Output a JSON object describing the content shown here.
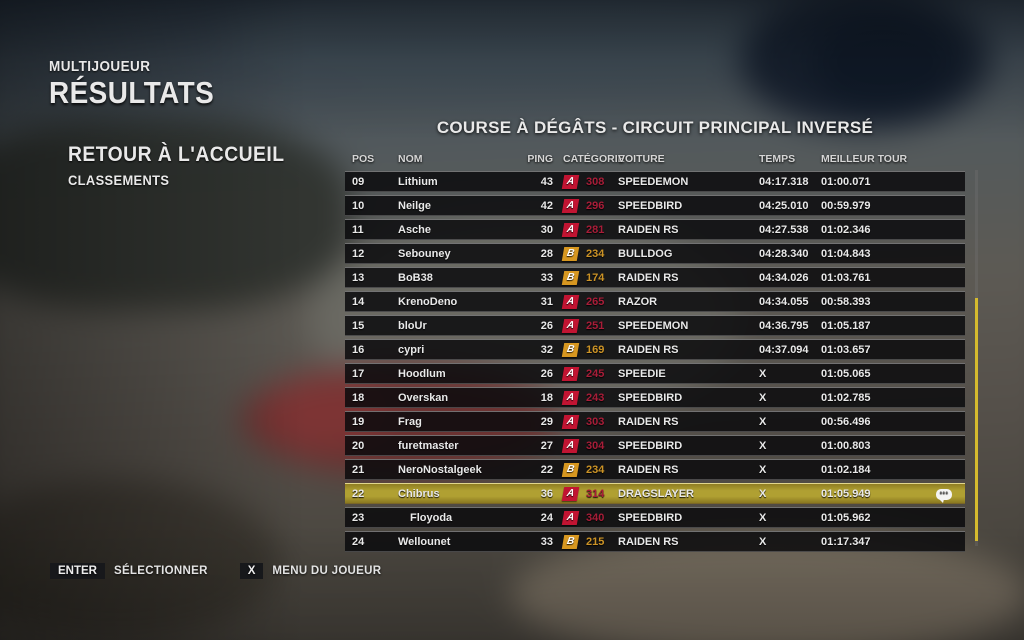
{
  "page": {
    "kicker": "MULTIJOUEUR",
    "title": "RÉSULTATS"
  },
  "menu": {
    "items": [
      {
        "label": "RETOUR À L'ACCUEIL"
      },
      {
        "label": "CLASSEMENTS"
      }
    ]
  },
  "results": {
    "title": "COURSE À DÉGÂTS - CIRCUIT PRINCIPAL INVERSÉ",
    "columns": {
      "pos": "POS",
      "name": "NOM",
      "ping": "PING",
      "category": "CATÉGORIE",
      "car": "VOITURE",
      "time": "TEMPS",
      "best_lap": "MEILLEUR TOUR"
    },
    "rows": [
      {
        "pos": "09",
        "name": "Lithium",
        "ping": "43",
        "cat": "A",
        "rating": "308",
        "car": "SPEEDEMON",
        "time": "04:17.318",
        "best": "01:00.071"
      },
      {
        "pos": "10",
        "name": "Neilge",
        "ping": "42",
        "cat": "A",
        "rating": "296",
        "car": "SPEEDBIRD",
        "time": "04:25.010",
        "best": "00:59.979"
      },
      {
        "pos": "11",
        "name": "Asche",
        "ping": "30",
        "cat": "A",
        "rating": "281",
        "car": "RAIDEN RS",
        "time": "04:27.538",
        "best": "01:02.346"
      },
      {
        "pos": "12",
        "name": "Sebouney",
        "ping": "28",
        "cat": "B",
        "rating": "234",
        "car": "BULLDOG",
        "time": "04:28.340",
        "best": "01:04.843"
      },
      {
        "pos": "13",
        "name": "BoB38",
        "ping": "33",
        "cat": "B",
        "rating": "174",
        "car": "RAIDEN RS",
        "time": "04:34.026",
        "best": "01:03.761"
      },
      {
        "pos": "14",
        "name": "KrenoDeno",
        "ping": "31",
        "cat": "A",
        "rating": "265",
        "car": "RAZOR",
        "time": "04:34.055",
        "best": "00:58.393"
      },
      {
        "pos": "15",
        "name": "bloUr",
        "ping": "26",
        "cat": "A",
        "rating": "251",
        "car": "SPEEDEMON",
        "time": "04:36.795",
        "best": "01:05.187"
      },
      {
        "pos": "16",
        "name": "cypri",
        "ping": "32",
        "cat": "B",
        "rating": "169",
        "car": "RAIDEN RS",
        "time": "04:37.094",
        "best": "01:03.657"
      },
      {
        "pos": "17",
        "name": "Hoodlum",
        "ping": "26",
        "cat": "A",
        "rating": "245",
        "car": "SPEEDIE",
        "time": "X",
        "best": "01:05.065"
      },
      {
        "pos": "18",
        "name": "Overskan",
        "ping": "18",
        "cat": "A",
        "rating": "243",
        "car": "SPEEDBIRD",
        "time": "X",
        "best": "01:02.785"
      },
      {
        "pos": "19",
        "name": "Frag",
        "ping": "29",
        "cat": "A",
        "rating": "303",
        "car": "RAIDEN RS",
        "time": "X",
        "best": "00:56.496"
      },
      {
        "pos": "20",
        "name": "furetmaster",
        "ping": "27",
        "cat": "A",
        "rating": "304",
        "car": "SPEEDBIRD",
        "time": "X",
        "best": "01:00.803"
      },
      {
        "pos": "21",
        "name": "NeroNostalgeek",
        "ping": "22",
        "cat": "B",
        "rating": "234",
        "car": "RAIDEN RS",
        "time": "X",
        "best": "01:02.184"
      },
      {
        "pos": "22",
        "name": "Chibrus",
        "ping": "36",
        "cat": "A",
        "rating": "314",
        "car": "DRAGSLAYER",
        "time": "X",
        "best": "01:05.949",
        "highlighted": true,
        "chat": true
      },
      {
        "pos": "23",
        "name": "Floyoda",
        "ping": "24",
        "cat": "A",
        "rating": "340",
        "car": "SPEEDBIRD",
        "time": "X",
        "best": "01:05.962",
        "indent": true
      },
      {
        "pos": "24",
        "name": "Wellounet",
        "ping": "33",
        "cat": "B",
        "rating": "215",
        "car": "RAIDEN RS",
        "time": "X",
        "best": "01:17.347"
      }
    ]
  },
  "footer": {
    "hints": [
      {
        "key": "ENTER",
        "label": "SÉLECTIONNER"
      },
      {
        "key": "X",
        "label": "MENU DU JOUEUR"
      }
    ]
  },
  "icons": {
    "chat_bubble_dots": "•••"
  },
  "colors": {
    "cat_a_badge": "#c11432",
    "cat_a_text": "#a81d38",
    "cat_b_badge": "#d79720",
    "cat_b_text": "#cc9326",
    "highlight_row": "#b0a032",
    "scrollbar_thumb": "#d5ba2e"
  }
}
